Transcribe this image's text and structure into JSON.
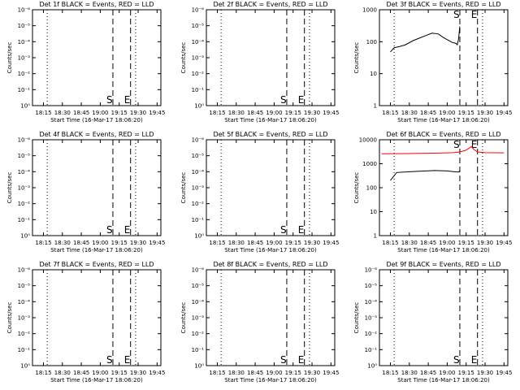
{
  "chart_data": [
    {
      "type": "line",
      "title": "Det 1f BLACK = Events, RED = LLD",
      "ylabel": "Counts/sec",
      "xlabel": "Start Time (16-Mar-17 18:06:20)",
      "x_tick_labels": [
        "18:15",
        "18:30",
        "18:45",
        "19:00",
        "19:15",
        "19:30",
        "19:45"
      ],
      "y_tick_labels": [
        "10⁰",
        "10⁻¹",
        "10⁻²",
        "10⁻³",
        "10⁻⁴",
        "10⁻⁵",
        "10⁻⁶"
      ],
      "ylim_exponent": [
        -6,
        0
      ],
      "log_y": true,
      "dotted_lines": [
        "18:18",
        "19:28"
      ],
      "dashed_lines": [
        {
          "time": "19:10",
          "label": "S"
        },
        {
          "time": "19:24",
          "label": "E"
        }
      ],
      "series": []
    },
    {
      "type": "line",
      "title": "Det 2f BLACK = Events, RED = LLD",
      "ylabel": "Counts/sec",
      "xlabel": "Start Time (16-Mar-17 18:06:20)",
      "x_tick_labels": [
        "18:15",
        "18:30",
        "18:45",
        "19:00",
        "19:15",
        "19:30",
        "19:45"
      ],
      "y_tick_labels": [
        "10⁰",
        "10⁻¹",
        "10⁻²",
        "10⁻³",
        "10⁻⁴",
        "10⁻⁵",
        "10⁻⁶"
      ],
      "ylim_exponent": [
        -6,
        0
      ],
      "log_y": true,
      "dotted_lines": [
        "18:18",
        "19:28"
      ],
      "dashed_lines": [
        {
          "time": "19:10",
          "label": "S"
        },
        {
          "time": "19:24",
          "label": "E"
        }
      ],
      "series": []
    },
    {
      "type": "line",
      "title": "Det 3f BLACK = Events, RED = LLD",
      "ylabel": "Counts/sec",
      "xlabel": "Start Time (16-Mar-17 18:06:20)",
      "x_tick_labels": [
        "18:15",
        "18:30",
        "18:45",
        "19:00",
        "19:15",
        "19:30",
        "19:45"
      ],
      "y_tick_labels": [
        "1",
        "10",
        "100",
        "1000"
      ],
      "ylim_exponent": [
        0,
        3
      ],
      "log_y": true,
      "dotted_lines": [
        "18:18",
        "19:28"
      ],
      "dashed_lines": [
        {
          "time": "19:10",
          "label": "S"
        },
        {
          "time": "19:24",
          "label": "E"
        }
      ],
      "series": [
        {
          "color": "#000000",
          "x": [
            "18:15",
            "18:18",
            "18:22",
            "18:27",
            "18:33",
            "18:38",
            "18:43",
            "18:48",
            "18:53",
            "18:57",
            "19:01",
            "19:04",
            "19:07",
            "19:08",
            "19:09",
            "19:10"
          ],
          "y": [
            48,
            65,
            70,
            80,
            108,
            130,
            155,
            185,
            175,
            135,
            110,
            95,
            88,
            80,
            120,
            300
          ]
        }
      ]
    },
    {
      "type": "line",
      "title": "Det 4f BLACK = Events, RED = LLD",
      "ylabel": "Counts/sec",
      "xlabel": "Start Time (16-Mar-17 18:06:20)",
      "x_tick_labels": [
        "18:15",
        "18:30",
        "18:45",
        "19:00",
        "19:15",
        "19:30",
        "19:45"
      ],
      "y_tick_labels": [
        "10⁰",
        "10⁻¹",
        "10⁻²",
        "10⁻³",
        "10⁻⁴",
        "10⁻⁵",
        "10⁻⁶"
      ],
      "ylim_exponent": [
        -6,
        0
      ],
      "log_y": true,
      "dotted_lines": [
        "18:18",
        "19:28"
      ],
      "dashed_lines": [
        {
          "time": "19:10",
          "label": "S"
        },
        {
          "time": "19:24",
          "label": "E"
        }
      ],
      "series": []
    },
    {
      "type": "line",
      "title": "Det 5f BLACK = Events, RED = LLD",
      "ylabel": "Counts/sec",
      "xlabel": "Start Time (16-Mar-17 18:06:20)",
      "x_tick_labels": [
        "18:15",
        "18:30",
        "18:45",
        "19:00",
        "19:15",
        "19:30",
        "19:45"
      ],
      "y_tick_labels": [
        "10⁰",
        "10⁻¹",
        "10⁻²",
        "10⁻³",
        "10⁻⁴",
        "10⁻⁵",
        "10⁻⁶"
      ],
      "ylim_exponent": [
        -6,
        0
      ],
      "log_y": true,
      "dotted_lines": [
        "18:18",
        "19:28"
      ],
      "dashed_lines": [
        {
          "time": "19:10",
          "label": "S"
        },
        {
          "time": "19:24",
          "label": "E"
        }
      ],
      "series": []
    },
    {
      "type": "line",
      "title": "Det 6f BLACK = Events, RED = LLD",
      "ylabel": "Counts/sec",
      "xlabel": "Start Time (16-Mar-17 18:06:20)",
      "x_tick_labels": [
        "18:15",
        "18:30",
        "18:45",
        "19:00",
        "19:15",
        "19:30",
        "19:45"
      ],
      "y_tick_labels": [
        "1",
        "10",
        "100",
        "1000",
        "10000"
      ],
      "ylim_exponent": [
        0,
        4
      ],
      "log_y": true,
      "dotted_lines": [
        "18:18",
        "19:28"
      ],
      "dashed_lines": [
        {
          "time": "19:10",
          "label": "S"
        },
        {
          "time": "19:24",
          "label": "E"
        }
      ],
      "series": [
        {
          "color": "#000000",
          "x": [
            "18:15",
            "18:20",
            "18:30",
            "18:40",
            "18:50",
            "19:00",
            "19:05",
            "19:09",
            "19:10"
          ],
          "y": [
            200,
            430,
            460,
            490,
            520,
            500,
            470,
            450,
            500
          ]
        },
        {
          "color": "#ff0000",
          "x": [
            "18:08",
            "18:30",
            "18:50",
            "19:05",
            "19:10",
            "19:14",
            "19:17",
            "19:19",
            "19:21",
            "19:24",
            "19:30",
            "19:45"
          ],
          "y": [
            2600,
            2650,
            2750,
            2900,
            3100,
            3500,
            4300,
            5200,
            4000,
            3100,
            2900,
            2850
          ]
        }
      ]
    },
    {
      "type": "line",
      "title": "Det 7f BLACK = Events, RED = LLD",
      "ylabel": "Counts/sec",
      "xlabel": "Start Time (16-Mar-17 18:06:20)",
      "x_tick_labels": [
        "18:15",
        "18:30",
        "18:45",
        "19:00",
        "19:15",
        "19:30",
        "19:45"
      ],
      "y_tick_labels": [
        "10⁰",
        "10⁻¹",
        "10⁻²",
        "10⁻³",
        "10⁻⁴",
        "10⁻⁵",
        "10⁻⁶"
      ],
      "ylim_exponent": [
        -6,
        0
      ],
      "log_y": true,
      "dotted_lines": [
        "18:18",
        "19:28"
      ],
      "dashed_lines": [
        {
          "time": "19:10",
          "label": "S"
        },
        {
          "time": "19:24",
          "label": "E"
        }
      ],
      "series": []
    },
    {
      "type": "line",
      "title": "Det 8f BLACK = Events, RED = LLD",
      "ylabel": "Counts/sec",
      "xlabel": "Start Time (16-Mar-17 18:06:20)",
      "x_tick_labels": [
        "18:15",
        "18:30",
        "18:45",
        "19:00",
        "19:15",
        "19:30",
        "19:45"
      ],
      "y_tick_labels": [
        "10⁰",
        "10⁻¹",
        "10⁻²",
        "10⁻³",
        "10⁻⁴",
        "10⁻⁵",
        "10⁻⁶"
      ],
      "ylim_exponent": [
        -6,
        0
      ],
      "log_y": true,
      "dotted_lines": [
        "18:18",
        "19:28"
      ],
      "dashed_lines": [
        {
          "time": "19:10",
          "label": "S"
        },
        {
          "time": "19:24",
          "label": "E"
        }
      ],
      "series": []
    },
    {
      "type": "line",
      "title": "Det 9f BLACK = Events, RED = LLD",
      "ylabel": "Counts/sec",
      "xlabel": "Start Time (16-Mar-17 18:06:20)",
      "x_tick_labels": [
        "18:15",
        "18:30",
        "18:45",
        "19:00",
        "19:15",
        "19:30",
        "19:45"
      ],
      "y_tick_labels": [
        "10⁰",
        "10⁻¹",
        "10⁻²",
        "10⁻³",
        "10⁻⁴",
        "10⁻⁵",
        "10⁻⁶"
      ],
      "ylim_exponent": [
        -6,
        0
      ],
      "log_y": true,
      "dotted_lines": [
        "18:18",
        "19:28"
      ],
      "dashed_lines": [
        {
          "time": "19:10",
          "label": "S"
        },
        {
          "time": "19:24",
          "label": "E"
        }
      ],
      "series": []
    }
  ]
}
